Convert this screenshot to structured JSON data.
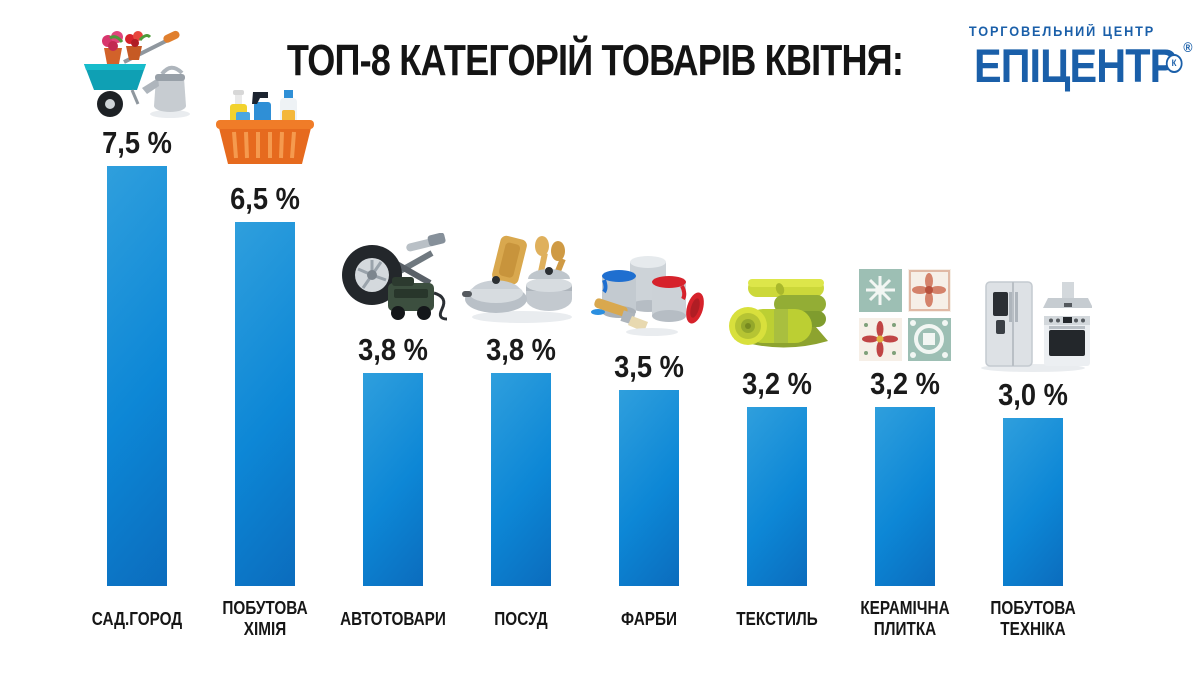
{
  "title": "ТОП-8 КАТЕГОРІЙ ТОВАРІВ КВІТНЯ:",
  "logo": {
    "tagline": "ТОРГОВЕЛЬНИЙ ЦЕНТР",
    "brand": "ЕПІЦЕНТР",
    "circled_letter": "К",
    "registered": "®",
    "color": "#1a5fa9"
  },
  "chart_data": {
    "type": "bar",
    "title": "ТОП-8 КАТЕГОРІЙ ТОВАРІВ КВІТНЯ:",
    "categories": [
      "САД.ГОРОД",
      "ПОБУТОВА\nХІМІЯ",
      "АВТОТОВАРИ",
      "ПОСУД",
      "ФАРБИ",
      "ТЕКСТИЛЬ",
      "КЕРАМІЧНА\nПЛИТКА",
      "ПОБУТОВА\nТЕХНІКА"
    ],
    "values": [
      7.5,
      6.5,
      3.8,
      3.8,
      3.5,
      3.2,
      3.2,
      3.0
    ],
    "value_labels": [
      "7,5 %",
      "6,5 %",
      "3,8 %",
      "3,8 %",
      "3,5 %",
      "3,2 %",
      "3,2 %",
      "3,0 %"
    ],
    "unit": "%",
    "ylim": [
      0,
      8
    ],
    "grid": false,
    "legend": false,
    "bar_color": "#0d87d6",
    "bar_color_light": "#2f9fdd",
    "bar_color_dark": "#0b6cbd",
    "icons": [
      "garden-icon",
      "household-chemicals-icon",
      "auto-goods-icon",
      "cookware-icon",
      "paints-icon",
      "textile-icon",
      "ceramic-tile-icon",
      "appliances-icon"
    ]
  }
}
